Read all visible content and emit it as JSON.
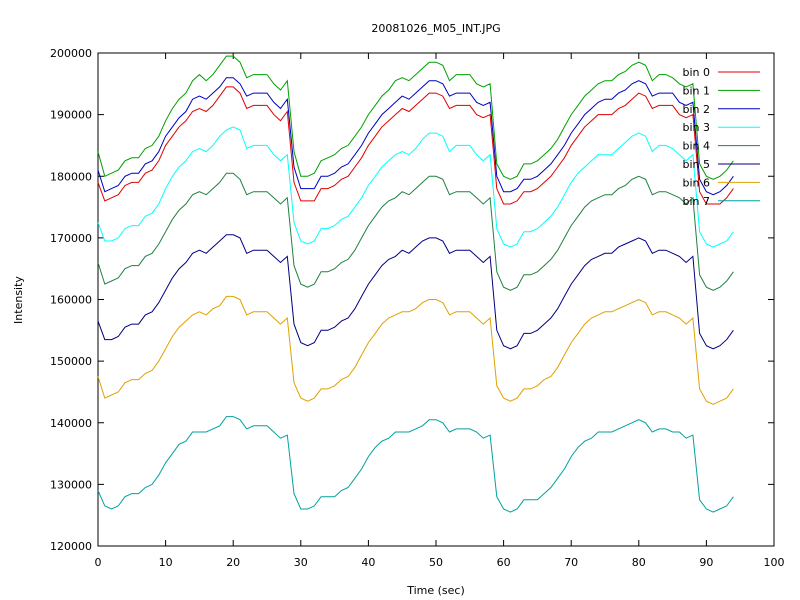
{
  "chart_data": {
    "type": "line",
    "title": "20081026_M05_INT.JPG",
    "xlabel": "Time (sec)",
    "ylabel": "Intensity",
    "xlim": [
      0,
      100
    ],
    "ylim": [
      120000,
      200000
    ],
    "xticks": [
      0,
      10,
      20,
      30,
      40,
      50,
      60,
      70,
      80,
      90,
      100
    ],
    "yticks": [
      120000,
      130000,
      140000,
      150000,
      160000,
      170000,
      180000,
      190000,
      200000
    ],
    "grid": false,
    "legend_position": "top-right",
    "x": [
      0,
      1,
      2,
      3,
      4,
      5,
      6,
      7,
      8,
      9,
      10,
      11,
      12,
      13,
      14,
      15,
      16,
      17,
      18,
      19,
      20,
      21,
      22,
      23,
      24,
      25,
      26,
      27,
      28,
      29,
      30,
      31,
      32,
      33,
      34,
      35,
      36,
      37,
      38,
      39,
      40,
      41,
      42,
      43,
      44,
      45,
      46,
      47,
      48,
      49,
      50,
      51,
      52,
      53,
      54,
      55,
      56,
      57,
      58,
      59,
      60,
      61,
      62,
      63,
      64,
      65,
      66,
      67,
      68,
      69,
      70,
      71,
      72,
      73,
      74,
      75,
      76,
      77,
      78,
      79,
      80,
      81,
      82,
      83,
      84,
      85,
      86,
      87,
      88,
      89,
      90,
      91,
      92,
      93,
      94
    ],
    "series": [
      {
        "name": "bin 0",
        "color": "#e00000",
        "values": [
          179000,
          176000,
          176500,
          177000,
          178500,
          179000,
          179000,
          180500,
          181000,
          182500,
          185000,
          186500,
          188000,
          189000,
          190500,
          191000,
          190500,
          191500,
          193000,
          194500,
          194500,
          193500,
          191000,
          191500,
          191500,
          191500,
          190000,
          189000,
          190500,
          179000,
          176000,
          176000,
          176000,
          178000,
          178000,
          178500,
          179500,
          180000,
          181500,
          183000,
          185000,
          186500,
          188000,
          189000,
          190000,
          191000,
          190500,
          191500,
          192500,
          193500,
          193500,
          193000,
          191000,
          191500,
          191500,
          191500,
          190000,
          189500,
          190000,
          178000,
          175500,
          175500,
          176000,
          177500,
          177500,
          178000,
          179000,
          180000,
          181500,
          183000,
          185000,
          186500,
          188000,
          189000,
          190000,
          190000,
          190000,
          191000,
          191500,
          192500,
          193500,
          193000,
          191000,
          191500,
          191500,
          191500,
          190000,
          189500,
          190000,
          177500,
          175500,
          175500,
          175500,
          176500,
          178000
        ]
      },
      {
        "name": "bin 1",
        "color": "#00a000",
        "values": [
          184000,
          180000,
          180500,
          181000,
          182500,
          183000,
          183000,
          184500,
          185000,
          186500,
          189000,
          191000,
          192500,
          193500,
          195500,
          196500,
          195500,
          196500,
          198000,
          199500,
          199500,
          198500,
          196000,
          196500,
          196500,
          196500,
          195000,
          194000,
          195500,
          184000,
          180000,
          180000,
          180500,
          182500,
          183000,
          183500,
          184500,
          185000,
          186500,
          188000,
          190000,
          191500,
          193000,
          194000,
          195500,
          196000,
          195500,
          196500,
          197500,
          198500,
          198500,
          198000,
          195500,
          196500,
          196500,
          196500,
          195000,
          194500,
          195000,
          182000,
          180000,
          179500,
          180000,
          182000,
          182000,
          182500,
          183500,
          184500,
          186000,
          188000,
          190000,
          191500,
          193000,
          194000,
          195000,
          195500,
          195500,
          196500,
          197000,
          198000,
          198500,
          198000,
          195500,
          196500,
          196500,
          196000,
          195000,
          194500,
          195000,
          182000,
          180000,
          179500,
          180000,
          181000,
          182500
        ]
      },
      {
        "name": "bin 2",
        "color": "#0000c0",
        "values": [
          181000,
          177500,
          178000,
          178500,
          180000,
          180500,
          180500,
          182000,
          182500,
          184000,
          186500,
          188000,
          189500,
          190500,
          192500,
          193000,
          192500,
          193500,
          194500,
          196000,
          196000,
          195000,
          193000,
          193500,
          193500,
          193500,
          192000,
          191000,
          192500,
          181500,
          178000,
          178000,
          178000,
          180000,
          180000,
          180500,
          181500,
          182000,
          183500,
          185000,
          187000,
          188500,
          190000,
          191000,
          192000,
          193000,
          192500,
          193500,
          194500,
          195500,
          195500,
          195000,
          193000,
          193500,
          193500,
          193500,
          192000,
          191500,
          192000,
          180000,
          177500,
          177500,
          178000,
          179500,
          179500,
          180000,
          181000,
          182000,
          183500,
          185000,
          187000,
          188500,
          190000,
          191000,
          192000,
          192500,
          192500,
          193500,
          194000,
          195000,
          195500,
          195000,
          193000,
          193500,
          193500,
          193500,
          192000,
          191500,
          192000,
          179500,
          177500,
          177000,
          177500,
          178500,
          180000
        ]
      },
      {
        "name": "bin 3",
        "color": "#00ffff",
        "values": [
          172500,
          169500,
          169500,
          170000,
          171500,
          172000,
          172000,
          173500,
          174000,
          175500,
          178000,
          180000,
          181500,
          182500,
          184000,
          184500,
          184000,
          185000,
          186500,
          187500,
          188000,
          187500,
          184500,
          185000,
          185000,
          185000,
          183500,
          182500,
          183500,
          172500,
          169500,
          169000,
          169500,
          171500,
          171500,
          172000,
          173000,
          173500,
          175000,
          176500,
          178500,
          180000,
          181500,
          182500,
          183500,
          184000,
          183500,
          184500,
          186000,
          187000,
          187000,
          186500,
          184000,
          185000,
          185000,
          185000,
          183500,
          182500,
          183500,
          171500,
          169000,
          168500,
          169000,
          171000,
          171000,
          171500,
          172500,
          173500,
          175000,
          177000,
          179000,
          180500,
          181500,
          182500,
          183500,
          183500,
          183500,
          184500,
          185500,
          186500,
          187000,
          186500,
          184000,
          185000,
          185000,
          184500,
          183500,
          182500,
          183500,
          171000,
          169000,
          168500,
          169000,
          169500,
          171000
        ]
      },
      {
        "name": "bin 4",
        "color": "#208040",
        "values": [
          166000,
          162500,
          163000,
          163500,
          165000,
          165500,
          165500,
          167000,
          167500,
          169000,
          171000,
          173000,
          174500,
          175500,
          177000,
          177500,
          177000,
          178000,
          179000,
          180500,
          180500,
          179500,
          177000,
          177500,
          177500,
          177500,
          176500,
          175500,
          176500,
          165500,
          162500,
          162000,
          162500,
          164500,
          164500,
          165000,
          166000,
          166500,
          168000,
          170000,
          172000,
          173500,
          175000,
          176000,
          176500,
          177500,
          177000,
          178000,
          179000,
          180000,
          180000,
          179500,
          177000,
          177500,
          177500,
          177500,
          176500,
          175500,
          176500,
          164500,
          162000,
          161500,
          162000,
          164000,
          164000,
          164500,
          165500,
          166500,
          168000,
          170000,
          172000,
          173500,
          175000,
          176000,
          176500,
          177000,
          177000,
          178000,
          178500,
          179500,
          180000,
          179500,
          177000,
          177500,
          177500,
          177000,
          176500,
          175500,
          176500,
          164000,
          162000,
          161500,
          162000,
          163000,
          164500
        ]
      },
      {
        "name": "bin 5",
        "color": "#000080",
        "values": [
          156500,
          153500,
          153500,
          154000,
          155500,
          156000,
          156000,
          157500,
          158000,
          159500,
          161500,
          163500,
          165000,
          166000,
          167500,
          168000,
          167500,
          168500,
          169500,
          170500,
          170500,
          170000,
          167500,
          168000,
          168000,
          168000,
          167000,
          166000,
          167000,
          156000,
          153000,
          152500,
          153000,
          155000,
          155000,
          155500,
          156500,
          157000,
          158500,
          160500,
          162500,
          164000,
          165500,
          166500,
          167000,
          168000,
          167500,
          168500,
          169500,
          170000,
          170000,
          169500,
          167500,
          168000,
          168000,
          168000,
          167000,
          166000,
          167000,
          155000,
          152500,
          152000,
          152500,
          154500,
          154500,
          155000,
          156000,
          157000,
          158500,
          160500,
          162500,
          164000,
          165500,
          166500,
          167000,
          167500,
          167500,
          168500,
          169000,
          169500,
          170000,
          169500,
          167500,
          168000,
          168000,
          167500,
          167000,
          166000,
          167000,
          154500,
          152500,
          152000,
          152500,
          153500,
          155000
        ]
      },
      {
        "name": "bin 6",
        "color": "#e0a000",
        "values": [
          147500,
          144000,
          144500,
          145000,
          146500,
          147000,
          147000,
          148000,
          148500,
          150000,
          152000,
          154000,
          155500,
          156500,
          157500,
          158000,
          157500,
          158500,
          159000,
          160500,
          160500,
          160000,
          157500,
          158000,
          158000,
          158000,
          157000,
          156000,
          157000,
          146500,
          144000,
          143500,
          144000,
          145500,
          145500,
          146000,
          147000,
          147500,
          149000,
          151000,
          153000,
          154500,
          156000,
          157000,
          157500,
          158000,
          158000,
          158500,
          159500,
          160000,
          160000,
          159500,
          157500,
          158000,
          158000,
          158000,
          157000,
          156000,
          157000,
          146000,
          144000,
          143500,
          144000,
          145500,
          145500,
          146000,
          147000,
          147500,
          149000,
          151000,
          153000,
          154500,
          156000,
          157000,
          157500,
          158000,
          158000,
          158500,
          159000,
          159500,
          160000,
          159500,
          157500,
          158000,
          158000,
          157500,
          157000,
          156000,
          157000,
          145500,
          143500,
          143000,
          143500,
          144000,
          145500
        ]
      },
      {
        "name": "bin 7",
        "color": "#00a0a0",
        "values": [
          129000,
          126500,
          126000,
          126500,
          128000,
          128500,
          128500,
          129500,
          130000,
          131500,
          133500,
          135000,
          136500,
          137000,
          138500,
          138500,
          138500,
          139000,
          139500,
          141000,
          141000,
          140500,
          139000,
          139500,
          139500,
          139500,
          138500,
          137500,
          138000,
          128500,
          126000,
          126000,
          126500,
          128000,
          128000,
          128000,
          129000,
          129500,
          131000,
          132500,
          134500,
          136000,
          137000,
          137500,
          138500,
          138500,
          138500,
          139000,
          139500,
          140500,
          140500,
          140000,
          138500,
          139000,
          139000,
          139000,
          138500,
          137500,
          138000,
          128000,
          126000,
          125500,
          126000,
          127500,
          127500,
          127500,
          128500,
          129500,
          131000,
          132500,
          134500,
          136000,
          137000,
          137500,
          138500,
          138500,
          138500,
          139000,
          139500,
          140000,
          140500,
          140000,
          138500,
          139000,
          139000,
          138500,
          138500,
          137500,
          138000,
          127500,
          126000,
          125500,
          126000,
          126500,
          128000
        ]
      }
    ]
  }
}
